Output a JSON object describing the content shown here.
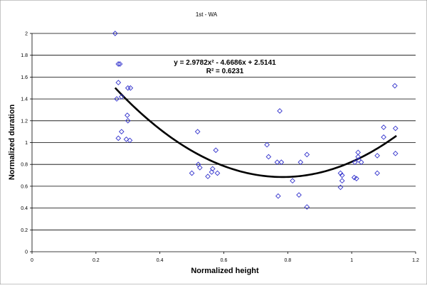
{
  "chart_data": {
    "type": "scatter",
    "title": "1st - WA",
    "xlabel": "Normalized height",
    "ylabel": "Normalized duration",
    "xlim": [
      0,
      1.2
    ],
    "ylim": [
      0,
      2
    ],
    "x_ticks": [
      "0",
      "0.2",
      "0.4",
      "0.6",
      "0.8",
      "1",
      "1.2"
    ],
    "y_ticks": [
      "0",
      "0.2",
      "0.4",
      "0.6",
      "0.8",
      "1",
      "1.2",
      "1.4",
      "1.6",
      "1.8",
      "2"
    ],
    "grid": "horizontal",
    "legend": "none",
    "marker": "diamond-outline",
    "marker_color": "#3333cc",
    "trendline": {
      "type": "polynomial-2",
      "coefficients": [
        2.9782,
        -4.6686,
        2.5141
      ],
      "x_range": [
        0.26,
        1.14
      ],
      "color": "#000000"
    },
    "annotations": [
      "y = 2.9782x² - 4.6686x + 2.5141",
      "R² = 0.6231"
    ],
    "series": [
      {
        "points": [
          [
            0.26,
            2.0
          ],
          [
            0.27,
            1.72
          ],
          [
            0.275,
            1.72
          ],
          [
            0.27,
            1.55
          ],
          [
            0.265,
            1.4
          ],
          [
            0.28,
            1.42
          ],
          [
            0.3,
            1.5
          ],
          [
            0.308,
            1.5
          ],
          [
            0.298,
            1.25
          ],
          [
            0.3,
            1.2
          ],
          [
            0.28,
            1.1
          ],
          [
            0.27,
            1.04
          ],
          [
            0.295,
            1.03
          ],
          [
            0.306,
            1.02
          ],
          [
            0.518,
            1.1
          ],
          [
            0.5,
            0.72
          ],
          [
            0.52,
            0.8
          ],
          [
            0.525,
            0.77
          ],
          [
            0.575,
            0.93
          ],
          [
            0.565,
            0.76
          ],
          [
            0.562,
            0.73
          ],
          [
            0.58,
            0.72
          ],
          [
            0.55,
            0.69
          ],
          [
            0.735,
            0.98
          ],
          [
            0.74,
            0.87
          ],
          [
            0.775,
            1.29
          ],
          [
            0.767,
            0.82
          ],
          [
            0.78,
            0.82
          ],
          [
            0.77,
            0.51
          ],
          [
            0.815,
            0.65
          ],
          [
            0.84,
            0.82
          ],
          [
            0.86,
            0.89
          ],
          [
            0.835,
            0.52
          ],
          [
            0.86,
            0.41
          ],
          [
            0.965,
            0.72
          ],
          [
            0.97,
            0.7
          ],
          [
            0.97,
            0.65
          ],
          [
            0.965,
            0.59
          ],
          [
            1.01,
            0.82
          ],
          [
            1.02,
            0.87
          ],
          [
            1.02,
            0.91
          ],
          [
            1.022,
            0.84
          ],
          [
            1.03,
            0.82
          ],
          [
            1.015,
            0.67
          ],
          [
            1.008,
            0.68
          ],
          [
            1.08,
            0.88
          ],
          [
            1.08,
            0.72
          ],
          [
            1.1,
            1.14
          ],
          [
            1.1,
            1.05
          ],
          [
            1.135,
            1.52
          ],
          [
            1.137,
            1.13
          ],
          [
            1.137,
            0.9
          ]
        ]
      }
    ]
  }
}
